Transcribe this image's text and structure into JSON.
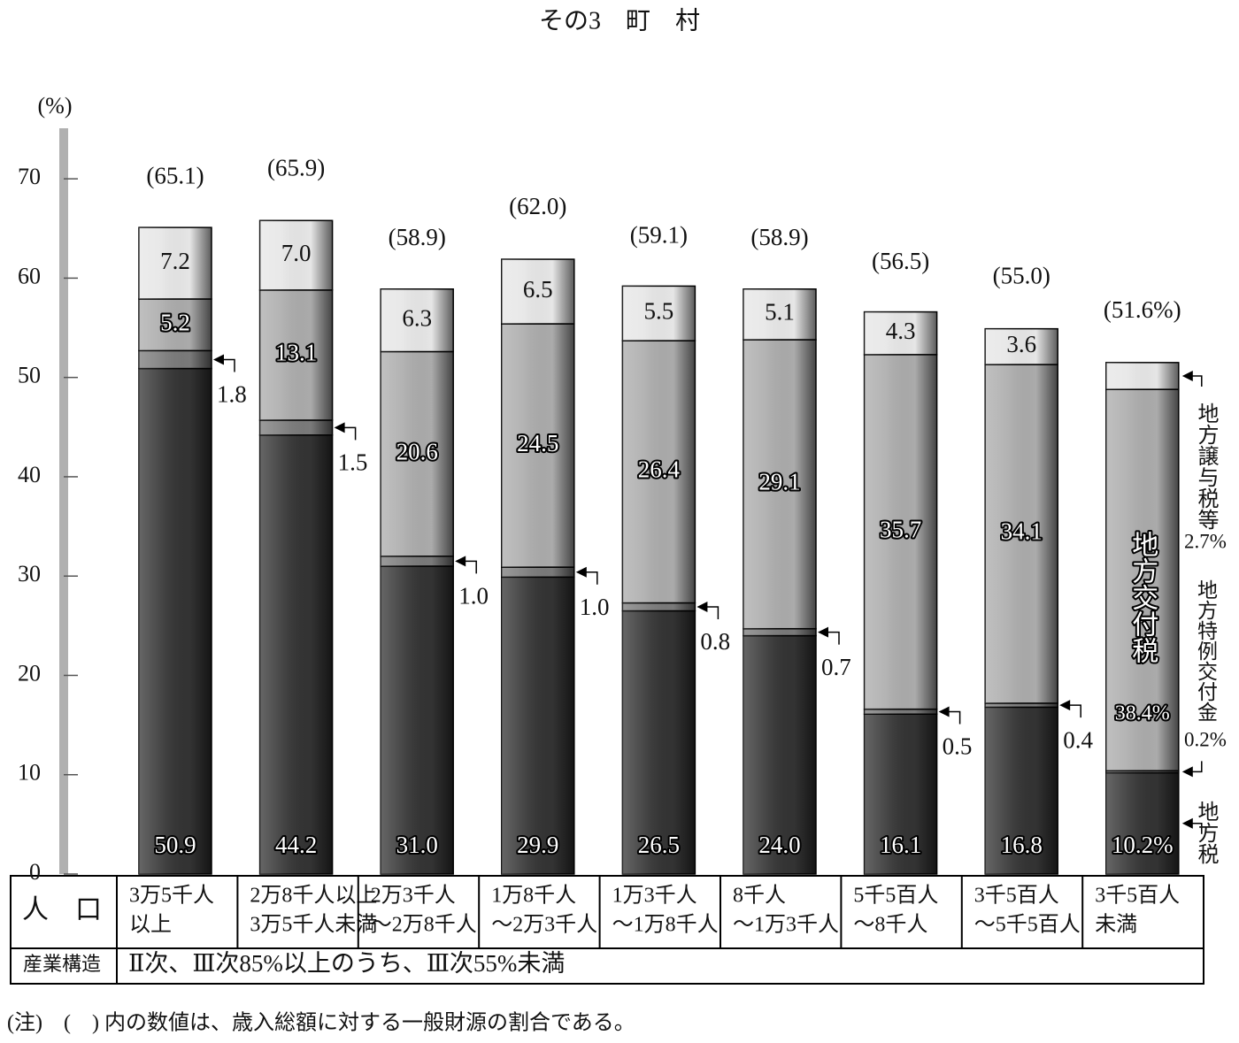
{
  "title": "その3　町　村",
  "chart_data": {
    "type": "stacked_bar",
    "y_label": "(%)",
    "categories": [
      [
        "3万5千人",
        "以上"
      ],
      [
        "2万8千人以上",
        "3万5千人未満"
      ],
      [
        "2万3千人",
        "～2万8千人"
      ],
      [
        "1万8千人",
        "～2万3千人"
      ],
      [
        "1万3千人",
        "～1万8千人"
      ],
      [
        "8千人",
        "～1万3千人"
      ],
      [
        "5千5百人",
        "～8千人"
      ],
      [
        "3千5百人",
        "～5千5百人"
      ],
      [
        "3千5百人",
        "未満"
      ]
    ],
    "series": [
      {
        "name": "地方税",
        "color": "#333333",
        "values": [
          50.9,
          44.2,
          31.0,
          29.9,
          26.5,
          24.0,
          16.1,
          16.8,
          10.2
        ],
        "value_labels": [
          "50.9",
          "44.2",
          "31.0",
          "29.9",
          "26.5",
          "24.0",
          "16.1",
          "16.8",
          "10.2%"
        ]
      },
      {
        "name": "地方特例交付金",
        "color": "#7a7a7a",
        "values": [
          1.8,
          1.5,
          1.0,
          1.0,
          0.8,
          0.7,
          0.5,
          0.4,
          0.2
        ],
        "value_labels": [
          "1.8",
          "1.5",
          "1.0",
          "1.0",
          "0.8",
          "0.7",
          "0.5",
          "0.4",
          "0.2%"
        ]
      },
      {
        "name": "地方交付税",
        "color": "#ababab",
        "values": [
          5.2,
          13.1,
          20.6,
          24.5,
          26.4,
          29.1,
          35.7,
          34.1,
          38.4
        ],
        "value_labels": [
          "5.2",
          "13.1",
          "20.6",
          "24.5",
          "26.4",
          "29.1",
          "35.7",
          "34.1",
          "38.4%"
        ]
      },
      {
        "name": "地方譲与税等",
        "color": "#e6e6e6",
        "values": [
          7.2,
          7.0,
          6.3,
          6.5,
          5.5,
          5.1,
          4.3,
          3.6,
          2.7
        ],
        "value_labels": [
          "7.2",
          "7.0",
          "6.3",
          "6.5",
          "5.5",
          "5.1",
          "4.3",
          "3.6",
          "2.7%"
        ]
      }
    ],
    "totals": {
      "values": [
        65.1,
        65.9,
        58.9,
        62.0,
        59.1,
        58.9,
        56.5,
        55.0,
        51.6
      ],
      "value_labels": [
        "(65.1)",
        "(65.9)",
        "(58.9)",
        "(62.0)",
        "(59.1)",
        "(58.9)",
        "(56.5)",
        "(55.0)",
        "(51.6%)"
      ]
    },
    "ylim": [
      0,
      75
    ],
    "yticks": [
      0,
      10,
      20,
      30,
      40,
      50,
      60,
      70
    ]
  },
  "table": {
    "row_headers": [
      "人　口",
      "産業構造"
    ],
    "industry": "Ⅱ次、Ⅲ次85%以上のうち、Ⅲ次55%未満"
  },
  "note": "(注)　(　) 内の数値は、歳入総額に対する一般財源の割合である。"
}
